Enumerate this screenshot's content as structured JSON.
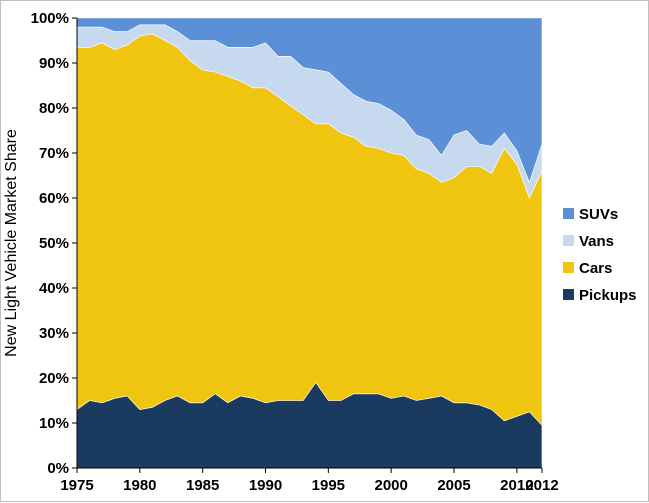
{
  "chart_data": {
    "type": "area",
    "stacked": true,
    "title": "",
    "xlabel": "",
    "ylabel": "New Light Vehicle Market Share",
    "xlim": [
      1975,
      2012
    ],
    "ylim": [
      0,
      100
    ],
    "x_ticks": [
      "1975",
      "1980",
      "1985",
      "1990",
      "1995",
      "2000",
      "2005",
      "2010",
      "2012"
    ],
    "y_ticks": [
      "0%",
      "10%",
      "20%",
      "30%",
      "40%",
      "50%",
      "60%",
      "70%",
      "80%",
      "90%",
      "100%"
    ],
    "grid": false,
    "legend_position": "right",
    "x": [
      1975,
      1976,
      1977,
      1978,
      1979,
      1980,
      1981,
      1982,
      1983,
      1984,
      1985,
      1986,
      1987,
      1988,
      1989,
      1990,
      1991,
      1992,
      1993,
      1994,
      1995,
      1996,
      1997,
      1998,
      1999,
      2000,
      2001,
      2002,
      2003,
      2004,
      2005,
      2006,
      2007,
      2008,
      2009,
      2010,
      2011,
      2012
    ],
    "series": [
      {
        "name": "Pickups",
        "color": "#1b3a5f",
        "values": [
          13,
          15,
          14.5,
          15.5,
          16,
          13,
          13.5,
          15,
          16,
          14.5,
          14.5,
          16.5,
          14.5,
          16,
          15.5,
          14.5,
          15,
          15,
          15,
          19,
          15,
          15,
          16.5,
          16.5,
          16.5,
          15.5,
          16,
          15,
          15.5,
          16,
          14.5,
          14.5,
          14,
          13,
          10.5,
          11.5,
          12.5,
          9.5
        ]
      },
      {
        "name": "Cars",
        "color": "#efc510",
        "values": [
          80.5,
          78.5,
          80,
          77.5,
          78,
          83,
          83,
          80,
          77.5,
          76,
          74,
          71.5,
          72.5,
          70,
          69,
          70,
          67.5,
          65.5,
          63.5,
          57.5,
          61.5,
          59.5,
          57,
          55,
          54.5,
          54.5,
          53.5,
          51.5,
          50,
          47.5,
          50,
          52.5,
          53,
          52.5,
          60.5,
          56,
          47.5,
          56.5
        ]
      },
      {
        "name": "Vans",
        "color": "#c7d9ef",
        "values": [
          4.5,
          4.5,
          3.5,
          4,
          3,
          2.5,
          2,
          3.5,
          3.5,
          4.5,
          6.5,
          7,
          6.5,
          7.5,
          9,
          10,
          9,
          11,
          10.5,
          12,
          11.5,
          11,
          9.5,
          10,
          10,
          9.5,
          8,
          7.5,
          7.5,
          6,
          9.5,
          8,
          5,
          6,
          3.5,
          3,
          3.5,
          6
        ]
      },
      {
        "name": "SUVs",
        "color": "#5b8fd6",
        "values": [
          2,
          2,
          2,
          3,
          3,
          1.5,
          1.5,
          1.5,
          3,
          5,
          5,
          5,
          6.5,
          6.5,
          6.5,
          5.5,
          8.5,
          8.5,
          11,
          11.5,
          12,
          14.5,
          17,
          18.5,
          19,
          20.5,
          22.5,
          26,
          27,
          30.5,
          26,
          25,
          28,
          28.5,
          25.5,
          29.5,
          36.5,
          28
        ]
      }
    ]
  }
}
